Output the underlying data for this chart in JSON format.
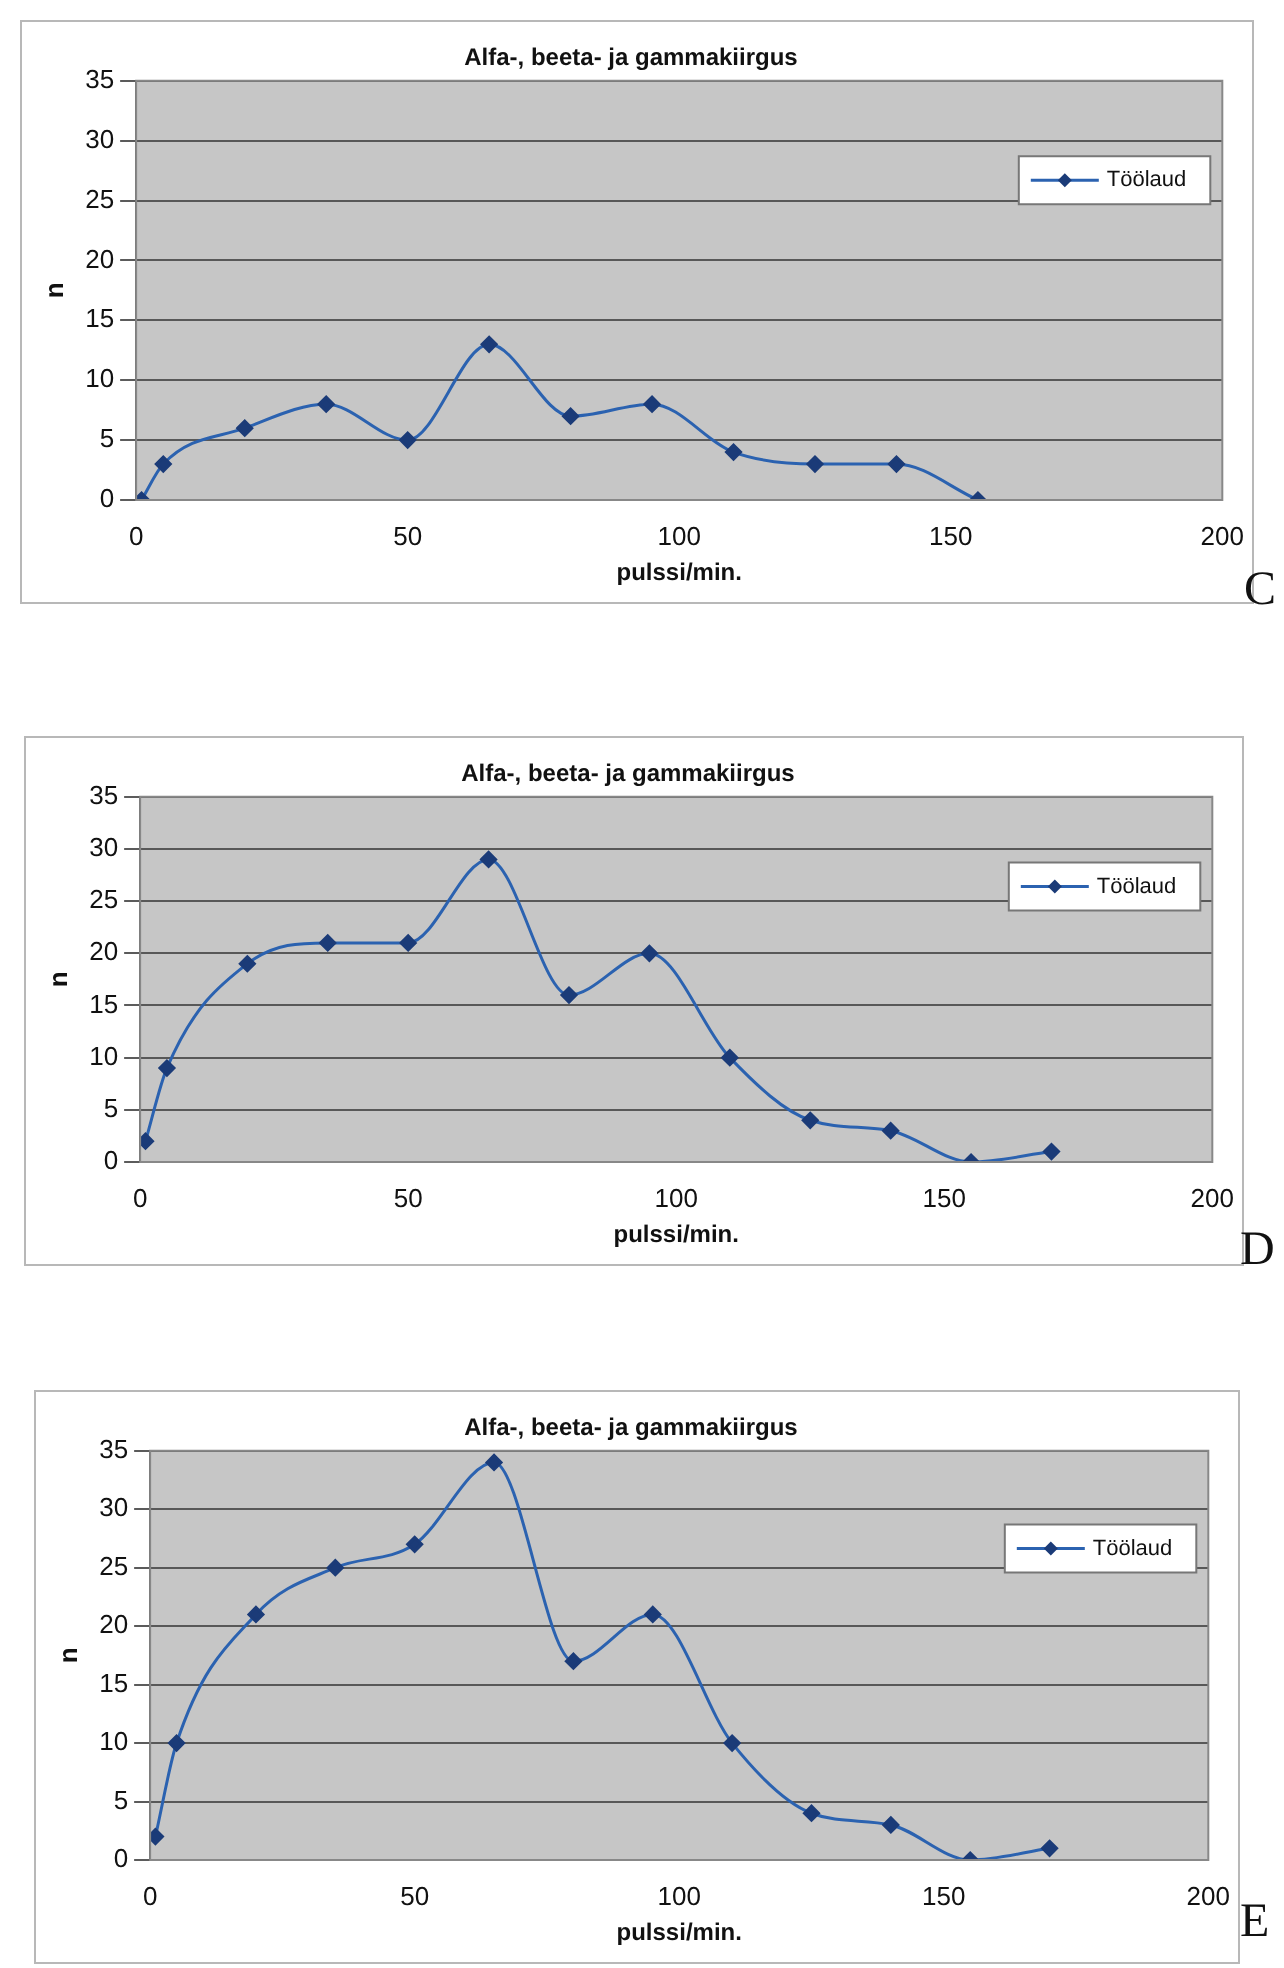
{
  "chart_data": [
    {
      "type": "line",
      "title": "Alfa-, beeta- ja gammakiirgus",
      "xlabel": "pulssi/min.",
      "ylabel": "n",
      "x": [
        1,
        5,
        20,
        35,
        50,
        65,
        80,
        95,
        110,
        125,
        140,
        155
      ],
      "series": [
        {
          "name": "Töölaud",
          "color": "#2b62b0",
          "values": [
            0,
            3,
            6,
            8,
            5,
            13,
            7,
            8,
            4,
            3,
            3,
            0
          ]
        }
      ],
      "xlim": [
        0,
        200
      ],
      "xticks": [
        0,
        50,
        100,
        150,
        200
      ],
      "ylim": [
        0,
        35
      ],
      "yticks": [
        0,
        5,
        10,
        15,
        20,
        25,
        30,
        35
      ],
      "grid": "y",
      "legend": "top right",
      "marker": "diamond",
      "line_style": "solid",
      "annotations": [
        "C"
      ]
    },
    {
      "type": "line",
      "title": "Alfa-, beeta- ja gammakiirgus",
      "xlabel": "pulssi/min.",
      "ylabel": "n",
      "x": [
        1,
        5,
        20,
        35,
        50,
        65,
        80,
        95,
        110,
        125,
        140,
        155,
        170
      ],
      "series": [
        {
          "name": "Töölaud",
          "color": "#2b62b0",
          "values": [
            2,
            9,
            19,
            21,
            21,
            29,
            16,
            20,
            10,
            4,
            3,
            0,
            1
          ]
        }
      ],
      "xlim": [
        0,
        200
      ],
      "xticks": [
        0,
        50,
        100,
        150,
        200
      ],
      "ylim": [
        0,
        35
      ],
      "yticks": [
        0,
        5,
        10,
        15,
        20,
        25,
        30,
        35
      ],
      "grid": "y",
      "legend": "top right",
      "marker": "diamond",
      "line_style": "solid",
      "annotations": [
        "D"
      ]
    },
    {
      "type": "line",
      "title": "Alfa-, beeta- ja gammakiirgus",
      "xlabel": "pulssi/min.",
      "ylabel": "n",
      "x": [
        1,
        5,
        20,
        35,
        50,
        65,
        80,
        95,
        110,
        125,
        140,
        155,
        170
      ],
      "series": [
        {
          "name": "Töölaud",
          "color": "#2b62b0",
          "values": [
            2,
            10,
            21,
            25,
            27,
            34,
            17,
            21,
            10,
            4,
            3,
            0,
            1
          ]
        }
      ],
      "xlim": [
        0,
        200
      ],
      "xticks": [
        0,
        50,
        100,
        150,
        200
      ],
      "ylim": [
        0,
        35
      ],
      "yticks": [
        0,
        5,
        10,
        15,
        20,
        25,
        30,
        35
      ],
      "grid": "y",
      "legend": "top right",
      "marker": "diamond",
      "line_style": "solid",
      "annotations": [
        "E"
      ]
    }
  ]
}
